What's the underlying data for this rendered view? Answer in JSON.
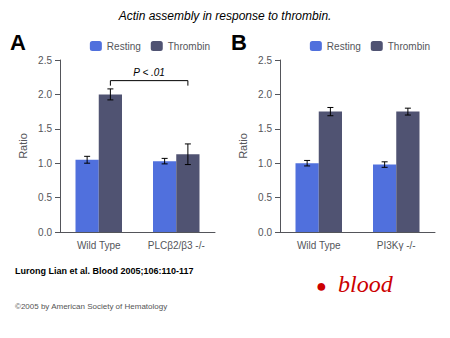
{
  "title": "Actin assembly in response to thrombin.",
  "chart_data": [
    {
      "type": "bar",
      "title": "A",
      "categories": [
        "Wild Type",
        "PLCβ2/β3 -/-"
      ],
      "series": [
        {
          "name": "Resting",
          "values": [
            1.05,
            1.03
          ],
          "errors": [
            0.05,
            0.04
          ]
        },
        {
          "name": "Thrombin",
          "values": [
            2.0,
            1.13
          ],
          "errors": [
            0.08,
            0.15
          ]
        }
      ],
      "ylabel": "Ratio",
      "ylim": [
        0,
        2.5
      ],
      "yticks": [
        {
          "value": 0,
          "label": "0.0"
        },
        {
          "value": 0.5,
          "label": "0.5"
        },
        {
          "value": 1,
          "label": "1.0"
        },
        {
          "value": 1.5,
          "label": "1.5"
        },
        {
          "value": 2,
          "label": "2.0"
        },
        {
          "value": 2.5,
          "label": "2.5"
        }
      ],
      "grid": false,
      "legend": "upper right",
      "annotations": [
        {
          "text": "P < .01",
          "y": 2.2,
          "series": "Thrombin",
          "between": [
            "Wild Type",
            "PLCβ2/β3 -/-"
          ]
        }
      ]
    },
    {
      "type": "bar",
      "title": "B",
      "categories": [
        "Wild Type",
        "PI3Kγ -/-"
      ],
      "series": [
        {
          "name": "Resting",
          "values": [
            1.0,
            0.98
          ],
          "errors": [
            0.04,
            0.04
          ]
        },
        {
          "name": "Thrombin",
          "values": [
            1.75,
            1.75
          ],
          "errors": [
            0.06,
            0.05
          ]
        }
      ],
      "ylabel": "Ratio",
      "ylim": [
        0,
        2.5
      ],
      "yticks": [
        {
          "value": 0,
          "label": "0.0"
        },
        {
          "value": 0.5,
          "label": "0.5"
        },
        {
          "value": 1,
          "label": "1.0"
        },
        {
          "value": 1.5,
          "label": "1.5"
        },
        {
          "value": 2,
          "label": "2.0"
        },
        {
          "value": 2.5,
          "label": "2.5"
        }
      ],
      "grid": false,
      "legend": "upper right"
    }
  ],
  "annotations": [
    {
      "text": "Lurong Lian et al. Blood 2005;106:110-117"
    },
    {
      "text": "©2005 by American Society of Hematology"
    },
    {
      "text": "●",
      "color": "#cc0000"
    },
    {
      "text": "blood",
      "color": "#cc0000"
    }
  ]
}
